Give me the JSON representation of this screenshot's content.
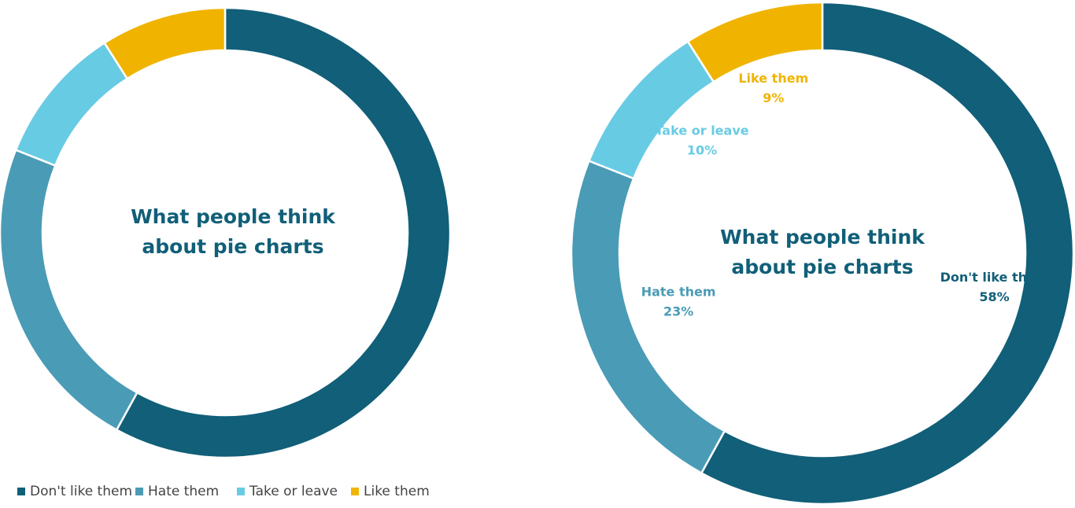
{
  "chart_data": [
    {
      "type": "pie",
      "variant": "donut",
      "title_lines": [
        "What people think",
        "about pie charts"
      ],
      "categories": [
        "Don't like them",
        "Hate them",
        "Take or leave",
        "Like them"
      ],
      "values": [
        58,
        23,
        10,
        9
      ],
      "colors": [
        "#115f78",
        "#4a9bb6",
        "#68cbe4",
        "#f0b400"
      ],
      "title_color": "#115f78",
      "show_labels": false,
      "legend": "bottom-left"
    },
    {
      "type": "pie",
      "variant": "donut",
      "title_lines": [
        "What people think",
        "about pie charts"
      ],
      "categories": [
        "Don't like them",
        "Hate them",
        "Take or leave",
        "Like them"
      ],
      "values": [
        58,
        23,
        10,
        9
      ],
      "value_labels": [
        "58%",
        "23%",
        "10%",
        "9%"
      ],
      "colors": [
        "#115f78",
        "#4a9bb6",
        "#68cbe4",
        "#f0b400"
      ],
      "title_color": "#115f78",
      "show_labels": true,
      "legend": "none"
    }
  ]
}
